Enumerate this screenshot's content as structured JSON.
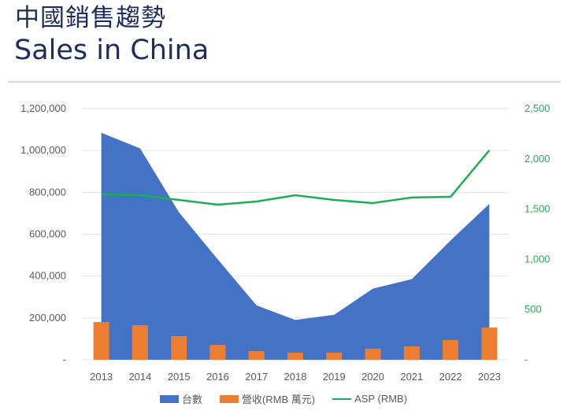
{
  "header": {
    "title_zh": "中國銷售趨勢",
    "title_en": "Sales in China"
  },
  "legend": {
    "units": "台數",
    "revenue": "營收(RMB 萬元)",
    "asp": "ASP (RMB)"
  },
  "colors": {
    "units": "#4472C4",
    "revenue": "#ED7D31",
    "asp": "#1AAF54",
    "title": "#1F2D5C",
    "grid": "#E3E3E3"
  },
  "chart_data": {
    "type": "combo (area + bar + line)",
    "title": "中國銷售趨勢 Sales in China",
    "categories": [
      "2013",
      "2014",
      "2015",
      "2016",
      "2017",
      "2018",
      "2019",
      "2020",
      "2021",
      "2022",
      "2023"
    ],
    "series": [
      {
        "name": "台數",
        "type": "area",
        "axis": "left",
        "values": [
          1085000,
          1010000,
          705000,
          480000,
          260000,
          190000,
          215000,
          340000,
          385000,
          570000,
          745000
        ]
      },
      {
        "name": "營收(RMB 萬元)",
        "type": "bar",
        "axis": "left",
        "values": [
          180000,
          165000,
          113000,
          71000,
          41000,
          34000,
          34000,
          53000,
          64000,
          94000,
          154000
        ]
      },
      {
        "name": "ASP (RMB)",
        "type": "line",
        "axis": "right",
        "values": [
          1646,
          1638,
          1591,
          1544,
          1575,
          1638,
          1591,
          1560,
          1615,
          1622,
          2085
        ]
      }
    ],
    "left_axis": {
      "ylim": [
        0,
        1200000
      ],
      "ticks": [
        "-",
        "200,000",
        "400,000",
        "600,000",
        "800,000",
        "1,000,000",
        "1,200,000"
      ]
    },
    "right_axis": {
      "ylim": [
        0,
        2500
      ],
      "ticks": [
        "-",
        "500",
        "1,000",
        "1,500",
        "2,000",
        "2,500"
      ]
    },
    "xlabel": "",
    "ylabel": "",
    "grid": true,
    "legend_position": "bottom"
  }
}
